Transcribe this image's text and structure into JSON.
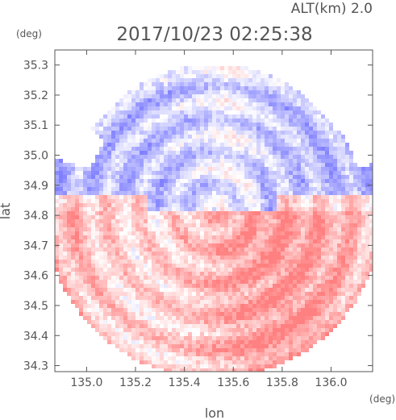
{
  "chart_data": {
    "type": "heatmap",
    "title": "2017/10/23 02:25:38",
    "subtitle": "ALT(km) 2.0",
    "xlabel": "lon",
    "ylabel": "lat",
    "x_unit": "(deg)",
    "y_unit": "(deg)",
    "xlim": [
      134.87,
      136.17
    ],
    "ylim": [
      34.28,
      35.35
    ],
    "x_ticks": [
      135.0,
      135.2,
      135.4,
      135.6,
      135.8,
      136.0
    ],
    "x_tick_labels": [
      "135.0",
      "135.2",
      "135.4",
      "135.6",
      "135.8",
      "136.0"
    ],
    "y_ticks": [
      34.3,
      34.4,
      34.5,
      34.6,
      34.7,
      34.8,
      34.9,
      35.0,
      35.1,
      35.2,
      35.3
    ],
    "y_tick_labels": [
      "34.3",
      "34.4",
      "34.5",
      "34.6",
      "34.7",
      "34.8",
      "34.9",
      "35.0",
      "35.1",
      "35.2",
      "35.3"
    ],
    "radar_center": {
      "lon": 135.52,
      "lat": 34.82
    },
    "colors": {
      "positive": "#f08c8c",
      "negative": "#8c8cf0",
      "axis": "#555555"
    }
  }
}
